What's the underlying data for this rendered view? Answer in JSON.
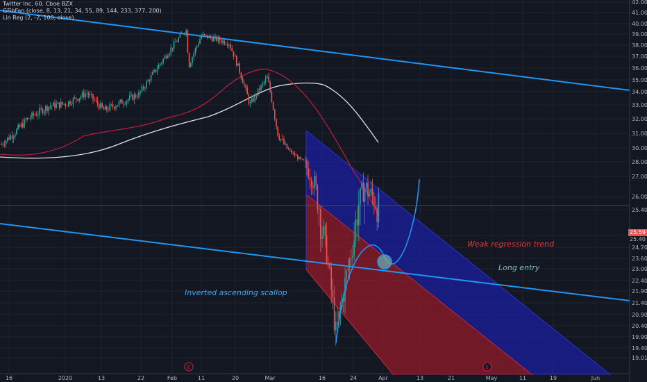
{
  "legend": {
    "symbol_line": "Twitter Inc, 60, Cboe BZX",
    "indicator1": "GFibFan (close, 8, 13, 21, 34, 55, 89, 144, 233, 377, 200)",
    "indicator2": "Lin Reg (2, -2, 100, close)"
  },
  "annotations": {
    "weak_regression": "Weak regression trend",
    "long_entry": "Long entry",
    "scallop": "Inverted ascending scallop"
  },
  "event_markers": [
    "E",
    "E"
  ],
  "price_labels": {
    "last_price": "25.59",
    "second_price": "25.40"
  },
  "colors": {
    "background": "#131722",
    "trendline": "#2196f3",
    "regression_upper": "#1b1f9e",
    "regression_lower": "#8b1a2a",
    "fib_red": "#b2203a",
    "fib_white": "#e0e3eb",
    "scallop_curve": "#2196f3",
    "annotation_red": "#e53935",
    "annotation_teal": "#80b9c0",
    "annotation_blue": "#42a5f5",
    "candle_up": "#26a69a",
    "candle_down": "#ef5350"
  },
  "chart_data": {
    "type": "candlestick",
    "title": "Twitter Inc, 60, Cboe BZX",
    "x_tick_labels": [
      "16",
      "2020",
      "13",
      "22",
      "Feb",
      "11",
      "20",
      "Mar",
      "16",
      "24",
      "Apr",
      "13",
      "21",
      "May",
      "11",
      "19",
      "Jun"
    ],
    "y_tick_labels": [
      "42.00",
      "41.00",
      "40.00",
      "39.00",
      "38.00",
      "37.00",
      "36.00",
      "35.00",
      "34.00",
      "33.00",
      "32.00",
      "31.00",
      "30.00",
      "28.00",
      "27.00",
      "26.00",
      "25.40",
      "24.80",
      "24.20",
      "23.60",
      "23.00",
      "22.40",
      "21.90",
      "21.40",
      "20.90",
      "20.40",
      "19.90",
      "19.40",
      "19.01"
    ],
    "ylim": [
      19.01,
      42.0
    ],
    "price_path": [
      {
        "x": "Dec 10",
        "y": 30.2
      },
      {
        "x": "Dec 18",
        "y": 31.0
      },
      {
        "x": "Jan 2",
        "y": 32.0
      },
      {
        "x": "Jan 9",
        "y": 32.9
      },
      {
        "x": "Jan 17",
        "y": 33.1
      },
      {
        "x": "Jan 24",
        "y": 33.9
      },
      {
        "x": "Jan 29",
        "y": 32.6
      },
      {
        "x": "Feb 5",
        "y": 33.8
      },
      {
        "x": "Feb 7",
        "y": 39.5
      },
      {
        "x": "Feb 11",
        "y": 36.2
      },
      {
        "x": "Feb 18",
        "y": 38.9
      },
      {
        "x": "Feb 21",
        "y": 38.2
      },
      {
        "x": "Feb 26",
        "y": 35.8
      },
      {
        "x": "Mar 3",
        "y": 33.0
      },
      {
        "x": "Mar 6",
        "y": 35.2
      },
      {
        "x": "Mar 10",
        "y": 31.0
      },
      {
        "x": "Mar 12",
        "y": 28.5
      },
      {
        "x": "Mar 17",
        "y": 27.0
      },
      {
        "x": "Mar 19",
        "y": 24.0
      },
      {
        "x": "Mar 20",
        "y": 20.0
      },
      {
        "x": "Mar 23",
        "y": 22.8
      },
      {
        "x": "Mar 25",
        "y": 25.5
      },
      {
        "x": "Mar 27",
        "y": 26.5
      },
      {
        "x": "Mar 30",
        "y": 25.6
      }
    ],
    "last_price": 25.59,
    "legend_position": "top-left",
    "grid": true
  }
}
